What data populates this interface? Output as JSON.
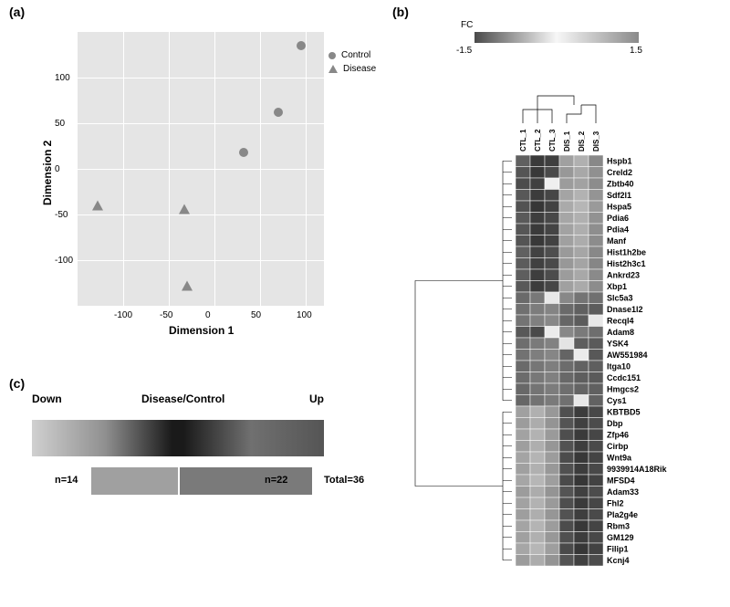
{
  "panel_labels": {
    "a": "(a)",
    "b": "(b)",
    "c": "(c)"
  },
  "scatter": {
    "xlabel": "Dimension 1",
    "ylabel": "Dimension 2",
    "xlim": [
      -150,
      120
    ],
    "ylim": [
      -150,
      150
    ],
    "xticks": [
      -100,
      -50,
      0,
      50,
      100
    ],
    "yticks": [
      -100,
      -50,
      0,
      50,
      100
    ],
    "background_color": "#e5e5e5",
    "grid_color": "#ffffff",
    "legend": [
      {
        "label": "Control",
        "shape": "circle",
        "color": "#888888"
      },
      {
        "label": "Disease",
        "shape": "triangle",
        "color": "#888888"
      }
    ],
    "points": [
      {
        "x": 95,
        "y": 135,
        "shape": "circle",
        "color": "#888888"
      },
      {
        "x": 70,
        "y": 62,
        "shape": "circle",
        "color": "#888888"
      },
      {
        "x": 32,
        "y": 18,
        "shape": "circle",
        "color": "#888888"
      },
      {
        "x": -128,
        "y": -40,
        "shape": "triangle",
        "color": "#888888"
      },
      {
        "x": -33,
        "y": -44,
        "shape": "triangle",
        "color": "#888888"
      },
      {
        "x": -30,
        "y": -128,
        "shape": "triangle",
        "color": "#888888"
      }
    ]
  },
  "heatmap": {
    "fc_title": "FC",
    "fc_min": "-1.5",
    "fc_max": "1.5",
    "fc_gradient": [
      "#4a4a4a",
      "#f7f7f7",
      "#8a8a8a"
    ],
    "samples": [
      "CTL_1",
      "CTL_2",
      "CTL_3",
      "DIS_1",
      "DIS_2",
      "DIS_3"
    ],
    "genes": [
      "Hspb1",
      "Creld2",
      "Zbtb40",
      "Sdf2l1",
      "Hspa5",
      "Pdia6",
      "Pdia4",
      "Manf",
      "Hist1h2be",
      "Hist2h3c1",
      "Ankrd23",
      "Xbp1",
      "Slc5a3",
      "Dnase1l2",
      "Recql4",
      "Adam8",
      "YSK4",
      "AW551984",
      "Itga10",
      "Ccdc151",
      "Hmgcs2",
      "Cys1",
      "KBTBD5",
      "Dbp",
      "Zfp46",
      "Cirbp",
      "Wnt9a",
      "9939914A18Rik",
      "MFSD4",
      "Adam33",
      "Fhl2",
      "Pla2g4e",
      "Rbm3",
      "GM129",
      "Filip1",
      "Kcnj4"
    ],
    "cell_colors": [
      [
        "#606060",
        "#3a3a3a",
        "#3f3f3f",
        "#a0a0a0",
        "#b0b0b0",
        "#888888"
      ],
      [
        "#555555",
        "#383838",
        "#4a4a4a",
        "#989898",
        "#a8a8a8",
        "#909090"
      ],
      [
        "#4c4c4c",
        "#404040",
        "#efefef",
        "#9c9c9c",
        "#a2a2a2",
        "#8c8c8c"
      ],
      [
        "#585858",
        "#3c3c3c",
        "#464646",
        "#a4a4a4",
        "#b2b2b2",
        "#949494"
      ],
      [
        "#525252",
        "#363636",
        "#424242",
        "#aaaaaa",
        "#b6b6b6",
        "#9a9a9a"
      ],
      [
        "#5a5a5a",
        "#3e3e3e",
        "#484848",
        "#a6a6a6",
        "#b0b0b0",
        "#929292"
      ],
      [
        "#565656",
        "#3a3a3a",
        "#444444",
        "#a2a2a2",
        "#aeaeae",
        "#8e8e8e"
      ],
      [
        "#545454",
        "#383838",
        "#424242",
        "#a0a0a0",
        "#acacac",
        "#8c8c8c"
      ],
      [
        "#606060",
        "#424242",
        "#4e4e4e",
        "#9a9a9a",
        "#a6a6a6",
        "#888888"
      ],
      [
        "#5c5c5c",
        "#404040",
        "#4a4a4a",
        "#989898",
        "#a4a4a4",
        "#868686"
      ],
      [
        "#5e5e5e",
        "#3e3e3e",
        "#4c4c4c",
        "#9c9c9c",
        "#a8a8a8",
        "#8a8a8a"
      ],
      [
        "#585858",
        "#3c3c3c",
        "#464646",
        "#a0a0a0",
        "#aaaaaa",
        "#8c8c8c"
      ],
      [
        "#6a6a6a",
        "#787878",
        "#e8e8e8",
        "#888888",
        "#747474",
        "#707070"
      ],
      [
        "#707070",
        "#7c7c7c",
        "#848484",
        "#6a6a6a",
        "#606060",
        "#5c5c5c"
      ],
      [
        "#747474",
        "#808080",
        "#888888",
        "#666666",
        "#5c5c5c",
        "#e8e8e8"
      ],
      [
        "#585858",
        "#4a4a4a",
        "#ececec",
        "#888888",
        "#7a7a7a",
        "#6e6e6e"
      ],
      [
        "#6e6e6e",
        "#7a7a7a",
        "#828282",
        "#e4e4e4",
        "#5e5e5e",
        "#5a5a5a"
      ],
      [
        "#727272",
        "#7e7e7e",
        "#868686",
        "#646464",
        "#ebebeb",
        "#585858"
      ],
      [
        "#6a6a6a",
        "#767676",
        "#7e7e7e",
        "#6c6c6c",
        "#626262",
        "#5e5e5e"
      ],
      [
        "#6c6c6c",
        "#787878",
        "#808080",
        "#686868",
        "#5e5e5e",
        "#5a5a5a"
      ],
      [
        "#686868",
        "#747474",
        "#7c7c7c",
        "#6e6e6e",
        "#646464",
        "#606060"
      ],
      [
        "#666666",
        "#727272",
        "#7a7a7a",
        "#707070",
        "#e8e8e8",
        "#626262"
      ],
      [
        "#a0a0a0",
        "#b0b0b0",
        "#989898",
        "#505050",
        "#3c3c3c",
        "#484848"
      ],
      [
        "#9c9c9c",
        "#acacac",
        "#949494",
        "#545454",
        "#404040",
        "#4c4c4c"
      ],
      [
        "#a2a2a2",
        "#b2b2b2",
        "#9a9a9a",
        "#4e4e4e",
        "#3a3a3a",
        "#464646"
      ],
      [
        "#9e9e9e",
        "#aeaeae",
        "#969696",
        "#525252",
        "#3e3e3e",
        "#4a4a4a"
      ],
      [
        "#a4a4a4",
        "#b4b4b4",
        "#9c9c9c",
        "#4c4c4c",
        "#383838",
        "#444444"
      ],
      [
        "#a0a0a0",
        "#b0b0b0",
        "#989898",
        "#505050",
        "#3c3c3c",
        "#484848"
      ],
      [
        "#a6a6a6",
        "#b6b6b6",
        "#9e9e9e",
        "#4a4a4a",
        "#363636",
        "#424242"
      ],
      [
        "#9c9c9c",
        "#acacac",
        "#949494",
        "#545454",
        "#404040",
        "#4c4c4c"
      ],
      [
        "#a2a2a2",
        "#b2b2b2",
        "#9a9a9a",
        "#4e4e4e",
        "#3a3a3a",
        "#464646"
      ],
      [
        "#9e9e9e",
        "#aeaeae",
        "#969696",
        "#525252",
        "#3e3e3e",
        "#4a4a4a"
      ],
      [
        "#a4a4a4",
        "#b4b4b4",
        "#9c9c9c",
        "#4c4c4c",
        "#383838",
        "#444444"
      ],
      [
        "#a0a0a0",
        "#b0b0b0",
        "#989898",
        "#505050",
        "#3c3c3c",
        "#484848"
      ],
      [
        "#a6a6a6",
        "#b6b6b6",
        "#9e9e9e",
        "#4a4a4a",
        "#363636",
        "#424242"
      ],
      [
        "#9c9c9c",
        "#acacac",
        "#949494",
        "#545454",
        "#404040",
        "#4c4c4c"
      ]
    ]
  },
  "barpanel": {
    "title": "Disease/Control",
    "left_label": "Down",
    "right_label": "Up",
    "gradient_colors": [
      "#d0d0d0",
      "#909090",
      "#1a1a1a",
      "#1a1a1a",
      "#707070",
      "#555555"
    ],
    "down_n": "n=14",
    "up_n": "n=22",
    "total": "Total=36",
    "down_color": "#a0a0a0",
    "up_color": "#7a7a7a",
    "down_width": 95,
    "up_width": 145
  }
}
